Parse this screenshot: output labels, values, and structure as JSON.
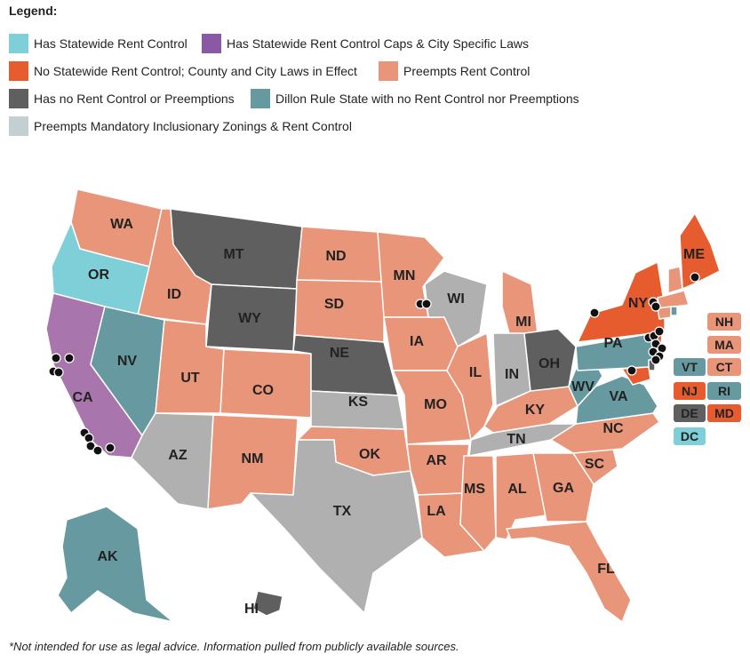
{
  "legend": {
    "title": "Legend:",
    "items": [
      {
        "key": "statewide",
        "label": "Has Statewide Rent Control",
        "color": "#7ecfd8"
      },
      {
        "key": "caps",
        "label": "Has Statewide Rent Control Caps & City Specific Laws",
        "color": "#8a58a4"
      },
      {
        "key": "county",
        "label": "No Statewide Rent Control; County and City Laws in Effect",
        "color": "#e65c2f"
      },
      {
        "key": "preempts",
        "label": "Preempts Rent Control",
        "color": "#e8957a"
      },
      {
        "key": "none",
        "label": "Has no Rent Control or Preemptions",
        "color": "#5f5f5f"
      },
      {
        "key": "dillon",
        "label": "Dillon Rule State with no Rent Control nor Preemptions",
        "color": "#669aa0"
      },
      {
        "key": "inclusionary",
        "label": "Preempts Mandatory Inclusionary Zonings & Rent Control",
        "color": "#c4cfd1"
      }
    ]
  },
  "extra_colors": {
    "caps_fill": "#a875ad",
    "gray_fill": "#b0b0b0"
  },
  "states": [
    {
      "abbr": "WA",
      "cat": "preempts"
    },
    {
      "abbr": "OR",
      "cat": "statewide"
    },
    {
      "abbr": "CA",
      "cat": "caps"
    },
    {
      "abbr": "ID",
      "cat": "preempts"
    },
    {
      "abbr": "NV",
      "cat": "dillon"
    },
    {
      "abbr": "MT",
      "cat": "none"
    },
    {
      "abbr": "WY",
      "cat": "none"
    },
    {
      "abbr": "UT",
      "cat": "preempts"
    },
    {
      "abbr": "AZ",
      "cat": "gray"
    },
    {
      "abbr": "CO",
      "cat": "preempts"
    },
    {
      "abbr": "NM",
      "cat": "preempts"
    },
    {
      "abbr": "ND",
      "cat": "preempts"
    },
    {
      "abbr": "SD",
      "cat": "preempts"
    },
    {
      "abbr": "NE",
      "cat": "none"
    },
    {
      "abbr": "KS",
      "cat": "gray"
    },
    {
      "abbr": "OK",
      "cat": "preempts"
    },
    {
      "abbr": "TX",
      "cat": "gray"
    },
    {
      "abbr": "MN",
      "cat": "preempts"
    },
    {
      "abbr": "IA",
      "cat": "preempts"
    },
    {
      "abbr": "MO",
      "cat": "preempts"
    },
    {
      "abbr": "AR",
      "cat": "preempts"
    },
    {
      "abbr": "LA",
      "cat": "preempts"
    },
    {
      "abbr": "WI",
      "cat": "gray"
    },
    {
      "abbr": "IL",
      "cat": "preempts"
    },
    {
      "abbr": "MI",
      "cat": "preempts"
    },
    {
      "abbr": "IN",
      "cat": "gray"
    },
    {
      "abbr": "OH",
      "cat": "none"
    },
    {
      "abbr": "KY",
      "cat": "preempts"
    },
    {
      "abbr": "TN",
      "cat": "gray"
    },
    {
      "abbr": "MS",
      "cat": "preempts"
    },
    {
      "abbr": "AL",
      "cat": "preempts"
    },
    {
      "abbr": "GA",
      "cat": "preempts"
    },
    {
      "abbr": "FL",
      "cat": "preempts"
    },
    {
      "abbr": "SC",
      "cat": "preempts"
    },
    {
      "abbr": "NC",
      "cat": "preempts"
    },
    {
      "abbr": "VA",
      "cat": "dillon"
    },
    {
      "abbr": "WV",
      "cat": "dillon"
    },
    {
      "abbr": "PA",
      "cat": "dillon"
    },
    {
      "abbr": "NY",
      "cat": "county"
    },
    {
      "abbr": "ME",
      "cat": "county"
    },
    {
      "abbr": "AK",
      "cat": "dillon"
    },
    {
      "abbr": "HI",
      "cat": "none"
    }
  ],
  "small_states": [
    {
      "abbr": "NH",
      "cat": "preempts"
    },
    {
      "abbr": "MA",
      "cat": "preempts"
    },
    {
      "abbr": "VT",
      "cat": "dillon"
    },
    {
      "abbr": "CT",
      "cat": "preempts"
    },
    {
      "abbr": "NJ",
      "cat": "county"
    },
    {
      "abbr": "RI",
      "cat": "dillon"
    },
    {
      "abbr": "DE",
      "cat": "none"
    },
    {
      "abbr": "MD",
      "cat": "county"
    },
    {
      "abbr": "DC",
      "cat": "statewide"
    }
  ],
  "footnote": "*Not intended for use as legal advice. Information pulled from publicly available sources."
}
